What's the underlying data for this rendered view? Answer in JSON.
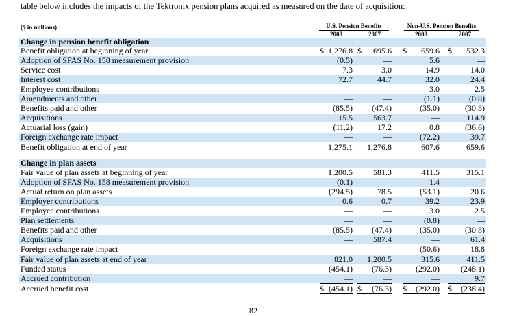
{
  "intro_text": "table below includes the impacts of the Tektronix pension plans acquired as measured on the date of acquisition:",
  "unit_label": "($ in millions)",
  "groups": [
    {
      "label": "U.S. Pension Benefits",
      "years": [
        "2008",
        "2007"
      ]
    },
    {
      "label": "Non-U.S. Pension Benefits",
      "years": [
        "2008",
        "2007"
      ]
    }
  ],
  "rows": [
    {
      "label": "Change in pension benefit obligation",
      "type": "header",
      "values": [
        "",
        "",
        "",
        ""
      ]
    },
    {
      "label": "Benefit obligation at beginning of year",
      "values": [
        "$1,276.8",
        "$ 695.6",
        "$ 659.6",
        "$ 532.3"
      ]
    },
    {
      "label": "Adoption of SFAS No. 158 measurement provision",
      "values": [
        "(0.5)",
        "—",
        "5.6",
        "—"
      ]
    },
    {
      "label": "Service cost",
      "values": [
        "7.3",
        "3.0",
        "14.9",
        "14.0"
      ]
    },
    {
      "label": "Interest cost",
      "values": [
        "72.7",
        "44.7",
        "32.0",
        "24.4"
      ]
    },
    {
      "label": "Employee contributions",
      "values": [
        "—",
        "—",
        "3.0",
        "2.5"
      ]
    },
    {
      "label": "Amendments and other",
      "values": [
        "—",
        "—",
        "(1.1)",
        "(0.8)"
      ]
    },
    {
      "label": "Benefits paid and other",
      "values": [
        "(85.5)",
        "(47.4)",
        "(35.0)",
        "(30.8)"
      ]
    },
    {
      "label": "Acquisitions",
      "values": [
        "15.5",
        "563.7",
        "—",
        "114.9"
      ]
    },
    {
      "label": "Actuarial loss (gain)",
      "values": [
        "(11.2)",
        "17.2",
        "0.8",
        "(36.6)"
      ]
    },
    {
      "label": "Foreign exchange rate impact",
      "values": [
        "—",
        "—",
        "(72.2)",
        "39.7"
      ]
    },
    {
      "label": "Benefit obligation at end of year",
      "values": [
        "1,275.1",
        "1,276.8",
        "607.6",
        "659.6"
      ]
    },
    {
      "label": "Change in plan assets",
      "type": "header",
      "values": [
        "",
        "",
        "",
        ""
      ]
    },
    {
      "label": "Fair value of plan assets at beginning of year",
      "values": [
        "1,200.5",
        "581.3",
        "411.5",
        "315.1"
      ]
    },
    {
      "label": "Adoption of SFAS No. 158 measurement provision",
      "values": [
        "(0.1)",
        "—",
        "1.4",
        "—"
      ]
    },
    {
      "label": "Actual return on plan assets",
      "values": [
        "(294.5)",
        "78.5",
        "(53.1)",
        "20.6"
      ]
    },
    {
      "label": "Employer contributions",
      "values": [
        "0.6",
        "0.7",
        "39.2",
        "23.9"
      ]
    },
    {
      "label": "Employee contributions",
      "values": [
        "—",
        "—",
        "3.0",
        "2.5"
      ]
    },
    {
      "label": "Plan settlements",
      "values": [
        "—",
        "—",
        "(0.8)",
        "—"
      ]
    },
    {
      "label": "Benefits paid and other",
      "values": [
        "(85.5)",
        "(47.4)",
        "(35.0)",
        "(30.8)"
      ]
    },
    {
      "label": "Acquisitions",
      "values": [
        "—",
        "587.4",
        "—",
        "61.4"
      ]
    },
    {
      "label": "Foreign exchange rate impact",
      "values": [
        "—",
        "—",
        "(50.6)",
        "18.8"
      ]
    },
    {
      "label": "Fair value of plan assets at end of year",
      "values": [
        "821.0",
        "1,200.5",
        "315.6",
        "411.5"
      ]
    },
    {
      "label": "Funded status",
      "values": [
        "(454.1)",
        "(76.3)",
        "(292.0)",
        "(248.1)"
      ]
    },
    {
      "label": "Accrued contribution",
      "values": [
        "—",
        "—",
        "—",
        "9.7"
      ]
    },
    {
      "label": "Accrued benefit cost",
      "values": [
        "$ (454.1)",
        "$ (76.3)",
        "$ (292.0)",
        "$ (238.4)"
      ]
    }
  ],
  "page_number": "82"
}
